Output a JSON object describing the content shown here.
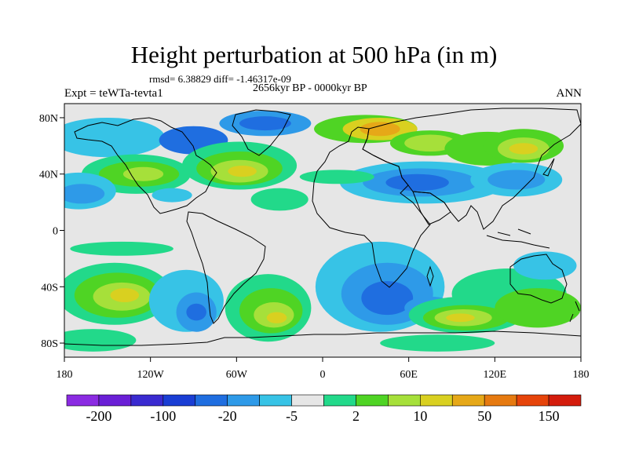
{
  "chart_data": {
    "type": "heatmap",
    "title": "Height perturbation at 500 hPa (in m)",
    "stats_line": "rmsd= 6.38829 diff= -1.46317e-09",
    "period": "2656kyr BP - 0000kyr BP",
    "experiment": "Expt = teWTa-tevta1",
    "season": "ANN",
    "x_axis": {
      "range": [
        -180,
        180
      ],
      "ticks": [
        {
          "value": -180,
          "label": "180"
        },
        {
          "value": -120,
          "label": "120W"
        },
        {
          "value": -60,
          "label": "60W"
        },
        {
          "value": 0,
          "label": "0"
        },
        {
          "value": 60,
          "label": "60E"
        },
        {
          "value": 120,
          "label": "120E"
        },
        {
          "value": 180,
          "label": "180"
        }
      ]
    },
    "y_axis": {
      "range": [
        -90,
        90
      ],
      "ticks": [
        {
          "value": 80,
          "label": "80N"
        },
        {
          "value": 40,
          "label": "40N"
        },
        {
          "value": 0,
          "label": "0"
        },
        {
          "value": -40,
          "label": "40S"
        },
        {
          "value": -80,
          "label": "80S"
        }
      ]
    },
    "colorbar": {
      "colors": [
        "#8b2be2",
        "#6a1fd6",
        "#3a2ad0",
        "#1a3ed4",
        "#1f6ee0",
        "#2e9ae8",
        "#37c3e6",
        "#e6e6e6",
        "#22d98a",
        "#4fd424",
        "#a6e03a",
        "#d9d020",
        "#e6a818",
        "#e67a10",
        "#e6440a",
        "#d41c0c"
      ],
      "tick_labels": [
        {
          "after_bin": 1,
          "label": "-200"
        },
        {
          "after_bin": 3,
          "label": "-100"
        },
        {
          "after_bin": 5,
          "label": "-20"
        },
        {
          "after_bin": 7,
          "label": "-5"
        },
        {
          "after_bin": 9,
          "label": "2"
        },
        {
          "after_bin": 11,
          "label": "10"
        },
        {
          "after_bin": 13,
          "label": "50"
        },
        {
          "after_bin": 15,
          "label": "150"
        }
      ]
    },
    "anomaly_regions": [
      {
        "lon": -150,
        "lat": 66,
        "rlon": 40,
        "rlat": 14,
        "level": 6
      },
      {
        "lon": -90,
        "lat": 64,
        "rlon": 24,
        "rlat": 10,
        "level": 4
      },
      {
        "lon": -40,
        "lat": 76,
        "rlon": 32,
        "rlat": 9,
        "level": 5
      },
      {
        "lon": -40,
        "lat": 76,
        "rlon": 18,
        "rlat": 5,
        "level": 4
      },
      {
        "lon": 30,
        "lat": 72,
        "rlon": 36,
        "rlat": 10,
        "level": 9
      },
      {
        "lon": 40,
        "lat": 72,
        "rlon": 26,
        "rlat": 8,
        "level": 11
      },
      {
        "lon": 40,
        "lat": 72,
        "rlon": 14,
        "rlat": 5,
        "level": 12
      },
      {
        "lon": 75,
        "lat": 62,
        "rlon": 28,
        "rlat": 9,
        "level": 9
      },
      {
        "lon": 75,
        "lat": 62,
        "rlon": 18,
        "rlat": 6,
        "level": 10
      },
      {
        "lon": 115,
        "lat": 58,
        "rlon": 30,
        "rlat": 12,
        "level": 9
      },
      {
        "lon": 140,
        "lat": 60,
        "rlon": 28,
        "rlat": 12,
        "level": 9
      },
      {
        "lon": 140,
        "lat": 58,
        "rlon": 18,
        "rlat": 8,
        "level": 10
      },
      {
        "lon": 140,
        "lat": 58,
        "rlon": 10,
        "rlat": 4,
        "level": 11
      },
      {
        "lon": -130,
        "lat": 40,
        "rlon": 38,
        "rlat": 14,
        "level": 8
      },
      {
        "lon": -128,
        "lat": 40,
        "rlon": 28,
        "rlat": 9,
        "level": 9
      },
      {
        "lon": -125,
        "lat": 40,
        "rlon": 14,
        "rlat": 5,
        "level": 10
      },
      {
        "lon": -58,
        "lat": 46,
        "rlon": 40,
        "rlat": 17,
        "level": 8
      },
      {
        "lon": -58,
        "lat": 44,
        "rlon": 30,
        "rlat": 12,
        "level": 9
      },
      {
        "lon": -58,
        "lat": 42,
        "rlon": 20,
        "rlat": 8,
        "level": 10
      },
      {
        "lon": -56,
        "lat": 42,
        "rlon": 10,
        "rlat": 4,
        "level": 11
      },
      {
        "lon": -170,
        "lat": 28,
        "rlon": 26,
        "rlat": 13,
        "level": 6
      },
      {
        "lon": -168,
        "lat": 26,
        "rlon": 16,
        "rlat": 7,
        "level": 5
      },
      {
        "lon": 70,
        "lat": 34,
        "rlon": 58,
        "rlat": 15,
        "level": 6
      },
      {
        "lon": 68,
        "lat": 34,
        "rlon": 40,
        "rlat": 10,
        "level": 5
      },
      {
        "lon": 66,
        "lat": 34,
        "rlon": 22,
        "rlat": 6,
        "level": 4
      },
      {
        "lon": 135,
        "lat": 36,
        "rlon": 32,
        "rlat": 12,
        "level": 6
      },
      {
        "lon": 135,
        "lat": 36,
        "rlon": 20,
        "rlat": 7,
        "level": 5
      },
      {
        "lon": -105,
        "lat": 25,
        "rlon": 14,
        "rlat": 5,
        "level": 6
      },
      {
        "lon": -30,
        "lat": 22,
        "rlon": 20,
        "rlat": 8,
        "level": 8
      },
      {
        "lon": 10,
        "lat": 38,
        "rlon": 26,
        "rlat": 5,
        "level": 8
      },
      {
        "lon": -140,
        "lat": -13,
        "rlon": 36,
        "rlat": 5,
        "level": 8
      },
      {
        "lon": -145,
        "lat": -45,
        "rlon": 40,
        "rlat": 22,
        "level": 8
      },
      {
        "lon": -143,
        "lat": -46,
        "rlon": 30,
        "rlat": 16,
        "level": 9
      },
      {
        "lon": -140,
        "lat": -47,
        "rlon": 20,
        "rlat": 10,
        "level": 10
      },
      {
        "lon": -138,
        "lat": -46,
        "rlon": 10,
        "rlat": 5,
        "level": 11
      },
      {
        "lon": -95,
        "lat": -50,
        "rlon": 26,
        "rlat": 22,
        "level": 6
      },
      {
        "lon": -88,
        "lat": -58,
        "rlon": 14,
        "rlat": 14,
        "level": 5
      },
      {
        "lon": -88,
        "lat": -58,
        "rlon": 7,
        "rlat": 6,
        "level": 4
      },
      {
        "lon": -38,
        "lat": -55,
        "rlon": 30,
        "rlat": 24,
        "level": 8
      },
      {
        "lon": -36,
        "lat": -57,
        "rlon": 22,
        "rlat": 16,
        "level": 9
      },
      {
        "lon": -34,
        "lat": -60,
        "rlon": 14,
        "rlat": 9,
        "level": 10
      },
      {
        "lon": -32,
        "lat": -62,
        "rlon": 7,
        "rlat": 4,
        "level": 11
      },
      {
        "lon": 40,
        "lat": -40,
        "rlon": 45,
        "rlat": 32,
        "level": 6
      },
      {
        "lon": 45,
        "lat": -45,
        "rlon": 32,
        "rlat": 22,
        "level": 5
      },
      {
        "lon": 45,
        "lat": -48,
        "rlon": 18,
        "rlat": 12,
        "level": 4
      },
      {
        "lon": 75,
        "lat": -55,
        "rlon": 18,
        "rlat": 8,
        "level": 5
      },
      {
        "lon": 130,
        "lat": -45,
        "rlon": 40,
        "rlat": 18,
        "level": 8
      },
      {
        "lon": 100,
        "lat": -60,
        "rlon": 40,
        "rlat": 13,
        "level": 8
      },
      {
        "lon": 100,
        "lat": -62,
        "rlon": 30,
        "rlat": 9,
        "level": 9
      },
      {
        "lon": 98,
        "lat": -62,
        "rlon": 20,
        "rlat": 6,
        "level": 10
      },
      {
        "lon": 96,
        "lat": -62,
        "rlon": 10,
        "rlat": 3,
        "level": 11
      },
      {
        "lon": 150,
        "lat": -55,
        "rlon": 30,
        "rlat": 14,
        "level": 9
      },
      {
        "lon": 155,
        "lat": -25,
        "rlon": 22,
        "rlat": 10,
        "level": 6
      },
      {
        "lon": -160,
        "lat": -78,
        "rlon": 30,
        "rlat": 8,
        "level": 8
      },
      {
        "lon": 80,
        "lat": -80,
        "rlon": 40,
        "rlat": 6,
        "level": 8
      }
    ]
  }
}
